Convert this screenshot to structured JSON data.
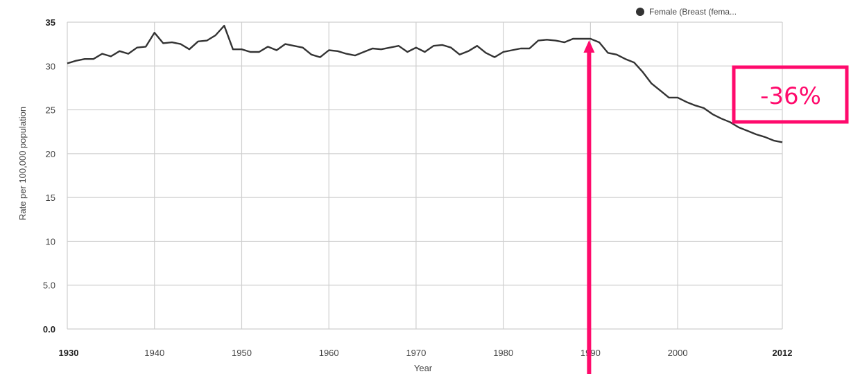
{
  "chart_data": {
    "type": "line",
    "xlabel": "Year",
    "ylabel": "Rate per 100,000 population",
    "xlim": [
      1930,
      2012
    ],
    "ylim": [
      0,
      35
    ],
    "x_ticks": [
      {
        "value": 1930,
        "label": "1930",
        "bold": true
      },
      {
        "value": 1940,
        "label": "1940",
        "bold": false
      },
      {
        "value": 1950,
        "label": "1950",
        "bold": false
      },
      {
        "value": 1960,
        "label": "1960",
        "bold": false
      },
      {
        "value": 1970,
        "label": "1970",
        "bold": false
      },
      {
        "value": 1980,
        "label": "1980",
        "bold": false
      },
      {
        "value": 1990,
        "label": "1990",
        "bold": false
      },
      {
        "value": 2000,
        "label": "2000",
        "bold": false
      },
      {
        "value": 2012,
        "label": "2012",
        "bold": true
      }
    ],
    "y_ticks": [
      {
        "value": 0,
        "label": "0.0",
        "bold": true
      },
      {
        "value": 5,
        "label": "5.0",
        "bold": false
      },
      {
        "value": 10,
        "label": "10",
        "bold": false
      },
      {
        "value": 15,
        "label": "15",
        "bold": false
      },
      {
        "value": 20,
        "label": "20",
        "bold": false
      },
      {
        "value": 25,
        "label": "25",
        "bold": false
      },
      {
        "value": 30,
        "label": "30",
        "bold": false
      },
      {
        "value": 35,
        "label": "35",
        "bold": true
      }
    ],
    "grid": true,
    "legend_position": "top-right",
    "series": [
      {
        "name": "Female (Breast (fema...",
        "color": "#333333",
        "x": [
          1930,
          1931,
          1932,
          1933,
          1934,
          1935,
          1936,
          1937,
          1938,
          1939,
          1940,
          1941,
          1942,
          1943,
          1944,
          1945,
          1946,
          1947,
          1948,
          1949,
          1950,
          1951,
          1952,
          1953,
          1954,
          1955,
          1956,
          1957,
          1958,
          1959,
          1960,
          1961,
          1962,
          1963,
          1964,
          1965,
          1966,
          1967,
          1968,
          1969,
          1970,
          1971,
          1972,
          1973,
          1974,
          1975,
          1976,
          1977,
          1978,
          1979,
          1980,
          1981,
          1982,
          1983,
          1984,
          1985,
          1986,
          1987,
          1988,
          1989,
          1990,
          1991,
          1992,
          1993,
          1994,
          1995,
          1996,
          1997,
          1998,
          1999,
          2000,
          2001,
          2002,
          2003,
          2004,
          2005,
          2006,
          2007,
          2008,
          2009,
          2010,
          2011,
          2012
        ],
        "values": [
          30.3,
          30.6,
          30.8,
          30.8,
          31.4,
          31.1,
          31.7,
          31.4,
          32.1,
          32.2,
          33.8,
          32.6,
          32.7,
          32.5,
          31.9,
          32.8,
          32.9,
          33.5,
          34.6,
          31.9,
          31.9,
          31.6,
          31.6,
          32.2,
          31.8,
          32.5,
          32.3,
          32.1,
          31.3,
          31.0,
          31.8,
          31.7,
          31.4,
          31.2,
          31.6,
          32.0,
          31.9,
          32.1,
          32.3,
          31.6,
          32.1,
          31.6,
          32.3,
          32.4,
          32.1,
          31.3,
          31.7,
          32.3,
          31.5,
          31.0,
          31.6,
          31.8,
          32.0,
          32.0,
          32.9,
          33.0,
          32.9,
          32.7,
          33.1,
          33.1,
          33.1,
          32.7,
          31.5,
          31.3,
          30.8,
          30.4,
          29.3,
          28.0,
          27.2,
          26.4,
          26.4,
          25.9,
          25.5,
          25.2,
          24.5,
          24.0,
          23.6,
          23.0,
          22.6,
          22.2,
          21.9,
          21.5,
          21.3
        ]
      }
    ]
  },
  "annotations": {
    "callout_text": "-36%",
    "callout_color": "#ff0a6c",
    "arrow_year": 1990,
    "arrow_color": "#ff0a6c"
  }
}
